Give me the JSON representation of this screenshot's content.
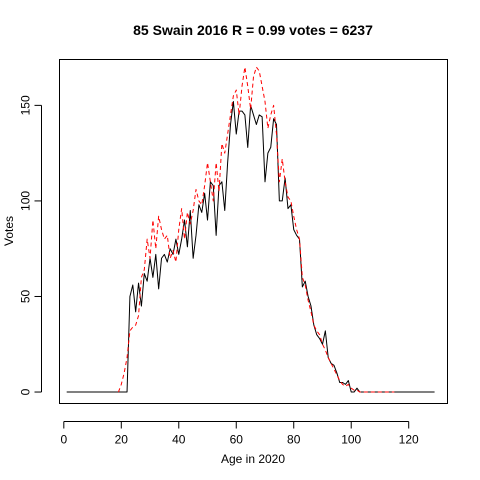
{
  "chart_data": {
    "type": "line",
    "title": "85 Swain 2016 R = 0.99 votes = 6237",
    "xlabel": "Age in 2020",
    "ylabel": "Votes",
    "xlim": [
      -1.5,
      133.5
    ],
    "ylim": [
      -6,
      174
    ],
    "xticks": [
      0,
      20,
      40,
      60,
      80,
      100,
      120
    ],
    "yticks": [
      0,
      50,
      100,
      150
    ],
    "grid": false,
    "legend": "none",
    "series": [
      {
        "style": "solid",
        "color": "#000000",
        "x": [
          1,
          2,
          3,
          4,
          5,
          6,
          7,
          8,
          9,
          10,
          11,
          12,
          13,
          14,
          15,
          16,
          17,
          18,
          19,
          20,
          21,
          22,
          23,
          24,
          25,
          26,
          27,
          28,
          29,
          30,
          31,
          32,
          33,
          34,
          35,
          36,
          37,
          38,
          39,
          40,
          41,
          42,
          43,
          44,
          45,
          46,
          47,
          48,
          49,
          50,
          51,
          52,
          53,
          54,
          55,
          56,
          57,
          58,
          59,
          60,
          61,
          62,
          63,
          64,
          65,
          66,
          67,
          68,
          69,
          70,
          71,
          72,
          73,
          74,
          75,
          76,
          77,
          78,
          79,
          80,
          81,
          82,
          83,
          84,
          85,
          86,
          87,
          88,
          89,
          90,
          91,
          92,
          93,
          94,
          95,
          96,
          97,
          98,
          99,
          100,
          101,
          102,
          103,
          104,
          105,
          106,
          107,
          108,
          109,
          110,
          111,
          112,
          113,
          114,
          115,
          116,
          117,
          118,
          119,
          120,
          121,
          122,
          123,
          124,
          125,
          126,
          127,
          128,
          129
        ],
        "y": [
          0,
          0,
          0,
          0,
          0,
          0,
          0,
          0,
          0,
          0,
          0,
          0,
          0,
          0,
          0,
          0,
          0,
          0,
          0,
          0,
          0,
          0,
          50,
          56,
          42,
          57,
          45,
          62,
          58,
          70,
          60,
          72,
          54,
          70,
          72,
          68,
          75,
          72,
          80,
          72,
          80,
          90,
          76,
          95,
          70,
          82,
          98,
          94,
          104,
          90,
          110,
          108,
          82,
          108,
          110,
          95,
          120,
          140,
          152,
          135,
          147,
          147,
          145,
          128,
          150,
          145,
          140,
          145,
          144,
          110,
          125,
          128,
          143,
          140,
          100,
          100,
          112,
          96,
          98,
          85,
          82,
          80,
          55,
          58,
          50,
          45,
          35,
          30,
          28,
          25,
          32,
          18,
          15,
          14,
          10,
          5,
          5,
          4,
          6,
          0,
          0,
          2,
          0,
          0,
          0,
          0,
          0,
          0,
          0,
          0,
          0,
          0,
          0,
          0,
          0,
          0,
          0,
          0,
          0,
          0,
          0,
          0,
          0,
          0,
          0,
          0,
          0,
          0,
          0
        ]
      },
      {
        "style": "dashed",
        "color": "#ff0000",
        "x": [
          19,
          20,
          21,
          22,
          23,
          24,
          25,
          26,
          27,
          28,
          29,
          30,
          31,
          32,
          33,
          34,
          35,
          36,
          37,
          38,
          39,
          40,
          41,
          42,
          43,
          44,
          45,
          46,
          47,
          48,
          49,
          50,
          51,
          52,
          53,
          54,
          55,
          56,
          57,
          58,
          59,
          60,
          61,
          62,
          63,
          64,
          65,
          66,
          67,
          68,
          69,
          70,
          71,
          72,
          73,
          74,
          75,
          76,
          77,
          78,
          79,
          80,
          81,
          82,
          83,
          84,
          85,
          86,
          87,
          88,
          89,
          90,
          91,
          92,
          93,
          94,
          95,
          96,
          97,
          98,
          99,
          100,
          101,
          102,
          103,
          104,
          105,
          106,
          107,
          108,
          109,
          110,
          111,
          112,
          113,
          114,
          115
        ],
        "y": [
          0,
          4,
          10,
          18,
          32,
          34,
          35,
          40,
          60,
          64,
          80,
          70,
          90,
          75,
          92,
          85,
          80,
          82,
          70,
          74,
          68,
          85,
          96,
          80,
          94,
          88,
          95,
          106,
          100,
          98,
          108,
          120,
          110,
          100,
          120,
          105,
          130,
          125,
          135,
          145,
          155,
          158,
          145,
          160,
          170,
          160,
          148,
          165,
          170,
          168,
          160,
          152,
          138,
          145,
          150,
          135,
          110,
          122,
          110,
          102,
          100,
          92,
          85,
          80,
          60,
          56,
          48,
          42,
          35,
          32,
          30,
          25,
          22,
          18,
          15,
          12,
          9,
          6,
          4,
          3,
          4,
          2,
          1,
          1,
          0,
          0,
          0,
          0,
          0,
          0,
          0,
          0,
          0,
          0,
          0,
          0,
          0
        ]
      }
    ]
  }
}
